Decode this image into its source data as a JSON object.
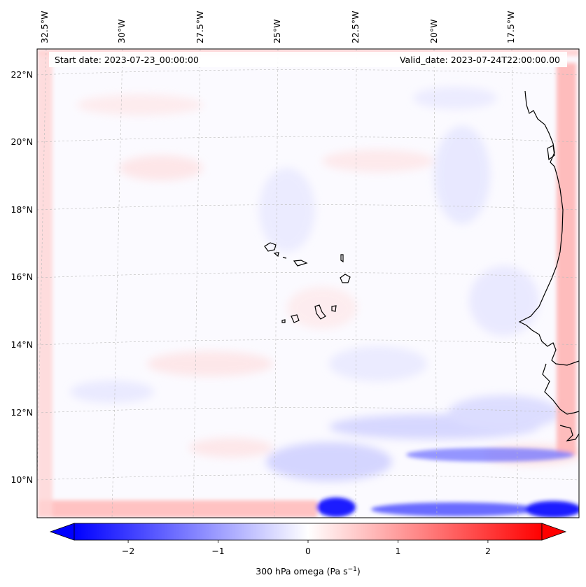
{
  "header": {
    "start_date": "Start date: 2023-07-23_00:00:00",
    "valid_date": "Valid_date: 2023-07-24T22:00:00.00"
  },
  "map": {
    "projection": "lambert-conformal",
    "lon_labels": [
      "32.5°W",
      "30°W",
      "27.5°W",
      "25°W",
      "22.5°W",
      "20°W",
      "17.5°W"
    ],
    "lat_labels": [
      "22°N",
      "20°N",
      "18°N",
      "16°N",
      "14°N",
      "12°N",
      "10°N"
    ],
    "gridlines": "dashed light grey",
    "coastlines": "black"
  },
  "colorbar": {
    "label": "300 hPa omega (Pa s",
    "label_exp": "−1",
    "label_close": ")",
    "ticks": [
      "−2",
      "−1",
      "0",
      "1",
      "2"
    ],
    "tick_values": [
      -2,
      -1,
      0,
      1,
      2
    ],
    "range": [
      -2.6,
      2.6
    ],
    "extend": "both",
    "colormap": "bwr",
    "colors": {
      "low": "#0000ff",
      "mid": "#ffffff",
      "high": "#ff0000"
    }
  }
}
